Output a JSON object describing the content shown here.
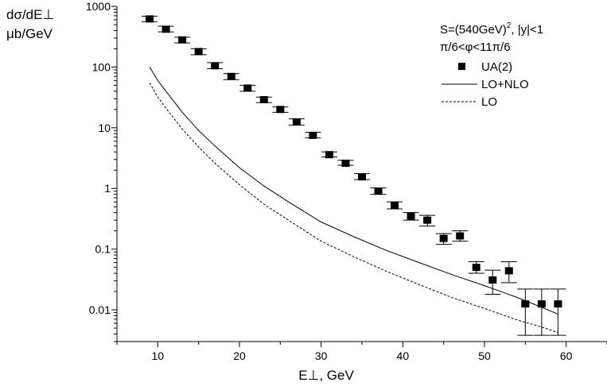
{
  "chart_data": {
    "type": "scatter",
    "title": "",
    "xlabel": "E⊥, GeV",
    "ylabel_line1": "dσ/dE⊥",
    "ylabel_line2": "μb/GeV",
    "xlim": [
      5,
      65
    ],
    "ylim": [
      0.003,
      1000
    ],
    "yscale": "log",
    "x_ticks": [
      10,
      20,
      30,
      40,
      50,
      60
    ],
    "x_tick_labels": [
      "10",
      "20",
      "30",
      "40",
      "50",
      "60"
    ],
    "y_ticks": [
      0.01,
      0.1,
      1,
      10,
      100,
      1000
    ],
    "y_tick_labels": [
      "0.01",
      "0.1",
      "1",
      "10",
      "100",
      "1000"
    ],
    "annotations": {
      "line1": "S=(540GeV)",
      "line1_sup": "2",
      "line1_tail": ", |y|<1",
      "line2": "π/6<φ<11π/6"
    },
    "legend": [
      {
        "label": "UA(2)",
        "style": "square-marker"
      },
      {
        "label": "LO+NLO",
        "style": "solid"
      },
      {
        "label": "LO",
        "style": "dashed"
      }
    ],
    "series": [
      {
        "name": "UA(2)",
        "kind": "points",
        "x": [
          9,
          11,
          13,
          15,
          17,
          19,
          21,
          23,
          25,
          27,
          29,
          31,
          33,
          35,
          37,
          39,
          41,
          43,
          45,
          47,
          49,
          51,
          53,
          55,
          57,
          59
        ],
        "y": [
          620,
          420,
          280,
          180,
          105,
          70,
          45,
          29,
          20,
          12.5,
          7.5,
          3.6,
          2.6,
          1.55,
          0.9,
          0.52,
          0.35,
          0.3,
          0.15,
          0.165,
          0.05,
          0.031,
          0.044,
          0.0125,
          0.0125,
          0.0125
        ],
        "y_low": [
          560,
          380,
          250,
          160,
          94,
          62,
          40,
          26,
          18,
          11,
          6.8,
          3.3,
          2.4,
          1.4,
          0.8,
          0.46,
          0.3,
          0.24,
          0.12,
          0.135,
          0.04,
          0.018,
          0.028,
          0.0038,
          0.0038,
          0.0038
        ],
        "y_high": [
          690,
          470,
          310,
          200,
          118,
          78,
          50,
          32,
          22,
          14,
          8.4,
          4.0,
          2.9,
          1.75,
          1.02,
          0.6,
          0.4,
          0.36,
          0.18,
          0.2,
          0.062,
          0.045,
          0.062,
          0.022,
          0.022,
          0.022
        ]
      },
      {
        "name": "LO+NLO",
        "kind": "line",
        "style": "solid",
        "x": [
          9,
          10,
          11,
          13,
          15,
          17,
          20,
          23,
          26,
          30,
          34,
          38,
          42,
          46,
          50,
          54,
          57,
          59
        ],
        "y": [
          100,
          60,
          40,
          18,
          9,
          5,
          2.2,
          1.1,
          0.6,
          0.28,
          0.16,
          0.095,
          0.06,
          0.038,
          0.025,
          0.016,
          0.011,
          0.0085
        ]
      },
      {
        "name": "LO",
        "kind": "line",
        "style": "dashed",
        "x": [
          9,
          10,
          11,
          13,
          15,
          17,
          20,
          23,
          26,
          30,
          34,
          38,
          42,
          46,
          50,
          54,
          57,
          59
        ],
        "y": [
          55,
          32,
          21,
          9.5,
          4.8,
          2.6,
          1.15,
          0.55,
          0.3,
          0.135,
          0.075,
          0.043,
          0.026,
          0.016,
          0.0105,
          0.0068,
          0.0052,
          0.0042
        ]
      }
    ]
  }
}
